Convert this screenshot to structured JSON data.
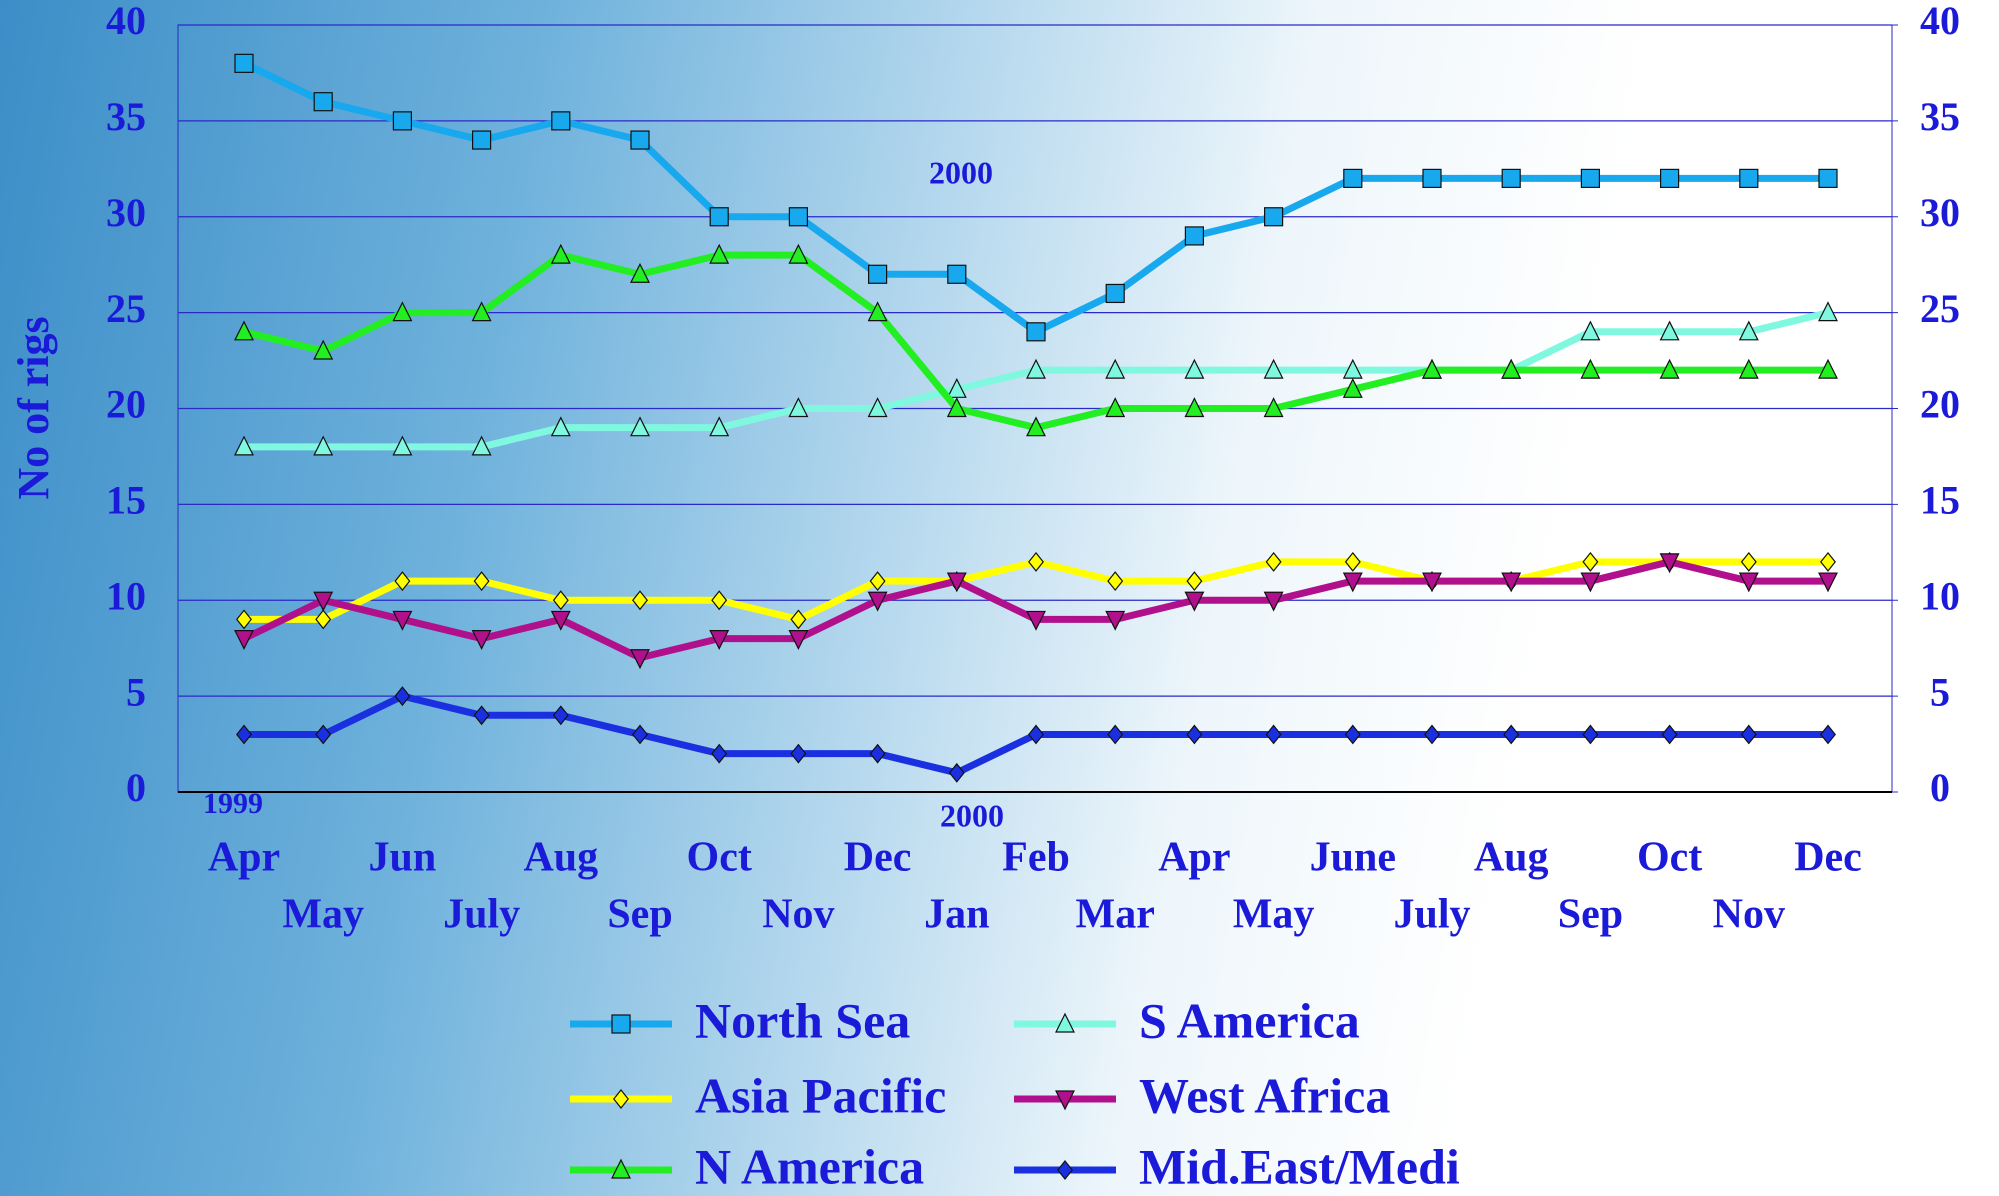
{
  "chart_data": {
    "type": "line",
    "y_label": "No of rigs",
    "categories": [
      "Apr",
      "May",
      "Jun",
      "July",
      "Aug",
      "Sep",
      "Oct",
      "Nov",
      "Dec",
      "Jan",
      "Feb",
      "Mar",
      "Apr",
      "May",
      "June",
      "July",
      "Aug",
      "Sep",
      "Oct",
      "Nov",
      "Dec"
    ],
    "annotations": [
      "1999",
      "2000",
      "2000"
    ],
    "ylim": [
      0,
      40
    ],
    "yticks": [
      0,
      5,
      10,
      15,
      20,
      25,
      30,
      35,
      40
    ],
    "y2lim": [
      0,
      40
    ],
    "y2ticks": [
      0,
      5,
      10,
      15,
      20,
      25,
      30,
      35,
      40
    ],
    "grid": true,
    "legend": "bottom",
    "series": [
      {
        "name": "North Sea",
        "color": "#18a8ee",
        "marker": "square",
        "values": [
          38,
          36,
          35,
          34,
          35,
          34,
          30,
          30,
          27,
          27,
          24,
          26,
          29,
          30,
          32,
          32,
          32,
          32,
          32,
          32,
          32
        ]
      },
      {
        "name": "S America",
        "color": "#80f8e0",
        "marker": "triangle-up",
        "values": [
          18,
          18,
          18,
          18,
          19,
          19,
          19,
          20,
          20,
          21,
          22,
          22,
          22,
          22,
          22,
          22,
          22,
          24,
          24,
          24,
          25
        ]
      },
      {
        "name": "Asia Pacific",
        "color": "#ffff00",
        "marker": "diamond",
        "values": [
          9,
          9,
          11,
          11,
          10,
          10,
          10,
          9,
          11,
          11,
          12,
          11,
          11,
          12,
          12,
          11,
          11,
          12,
          12,
          12,
          12
        ]
      },
      {
        "name": "West Africa",
        "color": "#b0108c",
        "marker": "triangle-down",
        "values": [
          8,
          10,
          9,
          8,
          9,
          7,
          8,
          8,
          10,
          11,
          9,
          9,
          10,
          10,
          11,
          11,
          11,
          11,
          12,
          11,
          11
        ]
      },
      {
        "name": "N America",
        "color": "#22ee22",
        "marker": "triangle-up",
        "values": [
          24,
          23,
          25,
          25,
          28,
          27,
          28,
          28,
          25,
          20,
          19,
          20,
          20,
          20,
          21,
          22,
          22,
          22,
          22,
          22,
          22
        ]
      },
      {
        "name": "Mid.East/Medi",
        "color": "#1a30e0",
        "marker": "diamond",
        "values": [
          3,
          3,
          5,
          4,
          4,
          3,
          2,
          2,
          2,
          1,
          3,
          3,
          3,
          3,
          3,
          3,
          3,
          3,
          3,
          3,
          3
        ]
      }
    ]
  }
}
